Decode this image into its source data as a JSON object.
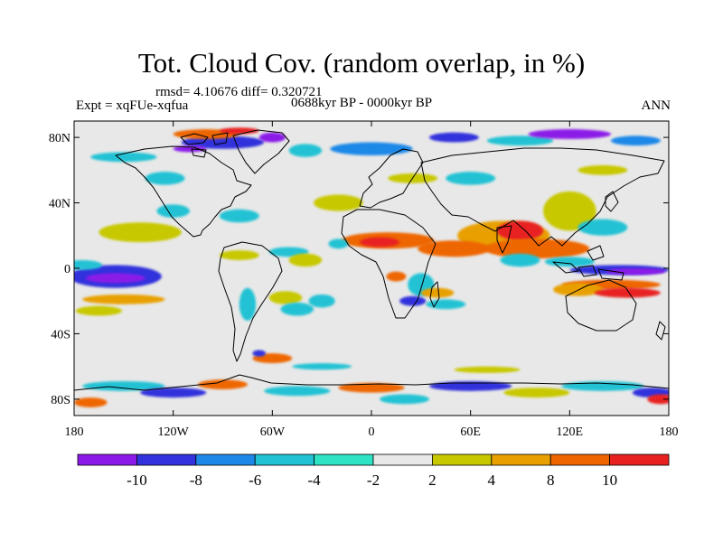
{
  "header": {
    "title": "Tot. Cloud Cov. (random overlap, in %)",
    "stats": "rmsd= 4.10676 diff= 0.320721",
    "experiment": "Expt = xqFUe-xqfua",
    "period": "0688kyr BP - 0000kyr BP",
    "season": "ANN"
  },
  "map": {
    "projection": "cylindrical equidistant",
    "lon_range": [
      -180,
      180
    ],
    "lat_range": [
      -90,
      90
    ],
    "lat_ticks": [
      {
        "value": 80,
        "label": "80N"
      },
      {
        "value": 40,
        "label": "40N"
      },
      {
        "value": 0,
        "label": "0"
      },
      {
        "value": -40,
        "label": "40S"
      },
      {
        "value": -80,
        "label": "80S"
      }
    ],
    "lon_ticks": [
      {
        "value": -180,
        "label": "180"
      },
      {
        "value": -120,
        "label": "120W"
      },
      {
        "value": -60,
        "label": "60W"
      },
      {
        "value": 0,
        "label": "0"
      },
      {
        "value": 60,
        "label": "60E"
      },
      {
        "value": 120,
        "label": "120E"
      },
      {
        "value": 180,
        "label": "180"
      }
    ],
    "background_color": "#e8e8e8",
    "anomaly_patches": [
      {
        "lon": 80,
        "lat": 20,
        "rlon": 28,
        "rlat": 9,
        "bin": 7
      },
      {
        "lon": 90,
        "lat": 23,
        "rlon": 14,
        "rlat": 6,
        "bin": 9
      },
      {
        "lon": 10,
        "lat": 17,
        "rlon": 28,
        "rlat": 5,
        "bin": 8
      },
      {
        "lon": 5,
        "lat": 16,
        "rlon": 12,
        "rlat": 3,
        "bin": 9
      },
      {
        "lon": 50,
        "lat": 12,
        "rlon": 22,
        "rlat": 5,
        "bin": 8
      },
      {
        "lon": 100,
        "lat": 12,
        "rlon": 32,
        "rlat": 6,
        "bin": 8
      },
      {
        "lon": 120,
        "lat": 35,
        "rlon": 16,
        "rlat": 12,
        "bin": 6
      },
      {
        "lon": 140,
        "lat": 25,
        "rlon": 15,
        "rlat": 5,
        "bin": 3
      },
      {
        "lon": 90,
        "lat": 5,
        "rlon": 12,
        "rlat": 4,
        "bin": 3
      },
      {
        "lon": 150,
        "lat": -1,
        "rlon": 30,
        "rlat": 3,
        "bin": 1
      },
      {
        "lon": 160,
        "lat": -2,
        "rlon": 18,
        "rlat": 2,
        "bin": 0
      },
      {
        "lon": 120,
        "lat": 4,
        "rlon": 15,
        "rlat": 3,
        "bin": 3
      },
      {
        "lon": 145,
        "lat": -10,
        "rlon": 30,
        "rlat": 3,
        "bin": 8
      },
      {
        "lon": 125,
        "lat": -13,
        "rlon": 15,
        "rlat": 4,
        "bin": 7
      },
      {
        "lon": 155,
        "lat": -15,
        "rlon": 20,
        "rlat": 3,
        "bin": 9
      },
      {
        "lon": -155,
        "lat": -5,
        "rlon": 28,
        "rlat": 7,
        "bin": 1
      },
      {
        "lon": -155,
        "lat": -6,
        "rlon": 18,
        "rlat": 3,
        "bin": 0
      },
      {
        "lon": -175,
        "lat": 2,
        "rlon": 12,
        "rlat": 3,
        "bin": 3
      },
      {
        "lon": -150,
        "lat": -19,
        "rlon": 25,
        "rlat": 3,
        "bin": 7
      },
      {
        "lon": -165,
        "lat": -26,
        "rlon": 14,
        "rlat": 3,
        "bin": 6
      },
      {
        "lon": -140,
        "lat": 22,
        "rlon": 25,
        "rlat": 6,
        "bin": 6
      },
      {
        "lon": -80,
        "lat": 8,
        "rlon": 12,
        "rlat": 3,
        "bin": 6
      },
      {
        "lon": -50,
        "lat": 10,
        "rlon": 12,
        "rlat": 3,
        "bin": 3
      },
      {
        "lon": -20,
        "lat": 40,
        "rlon": 15,
        "rlat": 5,
        "bin": 6
      },
      {
        "lon": -40,
        "lat": 5,
        "rlon": 10,
        "rlat": 4,
        "bin": 6
      },
      {
        "lon": 30,
        "lat": -10,
        "rlon": 8,
        "rlat": 7,
        "bin": 3
      },
      {
        "lon": 25,
        "lat": -20,
        "rlon": 8,
        "rlat": 3,
        "bin": 1
      },
      {
        "lon": 15,
        "lat": -5,
        "rlon": 6,
        "rlat": 3,
        "bin": 8
      },
      {
        "lon": 40,
        "lat": -15,
        "rlon": 10,
        "rlat": 3,
        "bin": 7
      },
      {
        "lon": 45,
        "lat": -22,
        "rlon": 12,
        "rlat": 3,
        "bin": 3
      },
      {
        "lon": -52,
        "lat": -18,
        "rlon": 10,
        "rlat": 4,
        "bin": 6
      },
      {
        "lon": -45,
        "lat": -25,
        "rlon": 10,
        "rlat": 4,
        "bin": 3
      },
      {
        "lon": -30,
        "lat": -20,
        "rlon": 8,
        "rlat": 4,
        "bin": 3
      },
      {
        "lon": -60,
        "lat": -55,
        "rlon": 12,
        "rlat": 3,
        "bin": 8
      },
      {
        "lon": -68,
        "lat": -52,
        "rlon": 4,
        "rlat": 2,
        "bin": 1
      },
      {
        "lon": -75,
        "lat": -22,
        "rlon": 5,
        "rlat": 10,
        "bin": 3
      },
      {
        "lon": -80,
        "lat": 32,
        "rlon": 12,
        "rlat": 4,
        "bin": 3
      },
      {
        "lon": -120,
        "lat": 35,
        "rlon": 10,
        "rlat": 4,
        "bin": 3
      },
      {
        "lon": -125,
        "lat": 55,
        "rlon": 12,
        "rlat": 4,
        "bin": 3
      },
      {
        "lon": -150,
        "lat": 68,
        "rlon": 20,
        "rlat": 3,
        "bin": 3
      },
      {
        "lon": -90,
        "lat": 77,
        "rlon": 25,
        "rlat": 4,
        "bin": 1
      },
      {
        "lon": -100,
        "lat": 82,
        "rlon": 20,
        "rlat": 3,
        "bin": 8
      },
      {
        "lon": -80,
        "lat": 84,
        "rlon": 12,
        "rlat": 2,
        "bin": 9
      },
      {
        "lon": -110,
        "lat": 73,
        "rlon": 10,
        "rlat": 2,
        "bin": 0
      },
      {
        "lon": -60,
        "lat": 80,
        "rlon": 8,
        "rlat": 3,
        "bin": 0
      },
      {
        "lon": -40,
        "lat": 72,
        "rlon": 10,
        "rlat": 4,
        "bin": 3
      },
      {
        "lon": 0,
        "lat": 73,
        "rlon": 25,
        "rlat": 4,
        "bin": 2
      },
      {
        "lon": 50,
        "lat": 80,
        "rlon": 15,
        "rlat": 3,
        "bin": 1
      },
      {
        "lon": 90,
        "lat": 78,
        "rlon": 20,
        "rlat": 3,
        "bin": 3
      },
      {
        "lon": 120,
        "lat": 82,
        "rlon": 25,
        "rlat": 3,
        "bin": 0
      },
      {
        "lon": 160,
        "lat": 78,
        "rlon": 15,
        "rlat": 3,
        "bin": 2
      },
      {
        "lon": 60,
        "lat": 55,
        "rlon": 15,
        "rlat": 4,
        "bin": 3
      },
      {
        "lon": 25,
        "lat": 55,
        "rlon": 15,
        "rlat": 3,
        "bin": 6
      },
      {
        "lon": 140,
        "lat": 60,
        "rlon": 15,
        "rlat": 3,
        "bin": 6
      },
      {
        "lon": -20,
        "lat": 15,
        "rlon": 6,
        "rlat": 3,
        "bin": 3
      },
      {
        "lon": -150,
        "lat": -72,
        "rlon": 25,
        "rlat": 3,
        "bin": 3
      },
      {
        "lon": -120,
        "lat": -76,
        "rlon": 20,
        "rlat": 3,
        "bin": 1
      },
      {
        "lon": -90,
        "lat": -71,
        "rlon": 15,
        "rlat": 3,
        "bin": 8
      },
      {
        "lon": -45,
        "lat": -75,
        "rlon": 20,
        "rlat": 3,
        "bin": 3
      },
      {
        "lon": 0,
        "lat": -73,
        "rlon": 20,
        "rlat": 3,
        "bin": 8
      },
      {
        "lon": 20,
        "lat": -80,
        "rlon": 15,
        "rlat": 3,
        "bin": 3
      },
      {
        "lon": 60,
        "lat": -72,
        "rlon": 25,
        "rlat": 3,
        "bin": 1
      },
      {
        "lon": 100,
        "lat": -76,
        "rlon": 20,
        "rlat": 3,
        "bin": 6
      },
      {
        "lon": 140,
        "lat": -72,
        "rlon": 25,
        "rlat": 3,
        "bin": 3
      },
      {
        "lon": 170,
        "lat": -76,
        "rlon": 12,
        "rlat": 3,
        "bin": 1
      },
      {
        "lon": -170,
        "lat": -82,
        "rlon": 10,
        "rlat": 3,
        "bin": 8
      },
      {
        "lon": 175,
        "lat": -80,
        "rlon": 8,
        "rlat": 3,
        "bin": 9
      },
      {
        "lon": -30,
        "lat": -60,
        "rlon": 18,
        "rlat": 2,
        "bin": 3
      },
      {
        "lon": 70,
        "lat": -62,
        "rlon": 20,
        "rlat": 2,
        "bin": 6
      }
    ]
  },
  "colorbar": {
    "colors": [
      "#8b1ae8",
      "#3333dd",
      "#1e88e8",
      "#20c2d4",
      "#2de3c4",
      "#e8e8e8",
      "#c8c800",
      "#e8a000",
      "#ee6600",
      "#e82020"
    ],
    "labels": [
      "-10",
      "-8",
      "-6",
      "-4",
      "-2",
      "2",
      "4",
      "8",
      "10"
    ],
    "units": "%"
  }
}
